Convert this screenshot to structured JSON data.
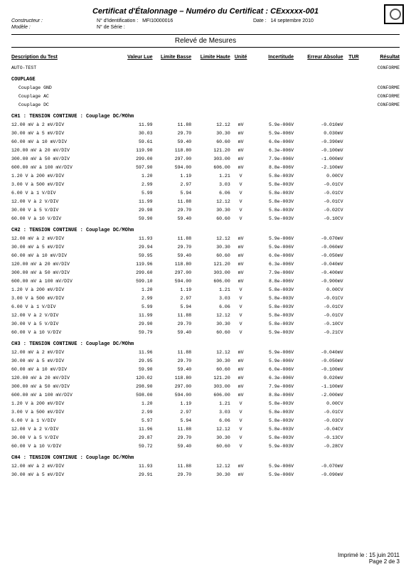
{
  "header": {
    "title": "Certificat d'Étalonnage",
    "cert_label": " – Numéro du Certificat : ",
    "cert_no": "CExxxxx-001",
    "constructeur_label": "Constructeur :",
    "modele_label": "Modèle :",
    "ident_label": "N° d'Identification :",
    "ident_value": "MFI10000016",
    "serie_label": "N° de Série :",
    "date_label": "Date :",
    "date_value": "14 septembre 2010",
    "releve": "Relevé de Mesures"
  },
  "columns": {
    "desc": "Description du Test",
    "vl": "Valeur Lue",
    "lb": "Limite Basse",
    "lh": "Limite Haute",
    "un": "Unité",
    "inc": "Incertitude",
    "err": "Erreur Absolue",
    "tur": "TUR",
    "res": "Résultat"
  },
  "autotest": {
    "label": "AUTO-TEST",
    "result": "CONFORME"
  },
  "couplage": {
    "title": "COUPLAGE",
    "lines": [
      {
        "label": "Couplage GND",
        "result": "CONFORME"
      },
      {
        "label": "Couplage AC",
        "result": "CONFORME"
      },
      {
        "label": "Couplage DC",
        "result": "CONFORME"
      }
    ]
  },
  "channels": [
    {
      "title": "CH1 : TENSION CONTINUE : Couplage DC/MOhm",
      "rows": [
        {
          "d": "12.00 mV à 2 mV/DIV",
          "vl": "11.99",
          "lb": "11.88",
          "lh": "12.12",
          "u": "mV",
          "inc": "5.9e-006V",
          "err": "-0.010mV"
        },
        {
          "d": "30.00 mV à 5 mV/DIV",
          "vl": "30.03",
          "lb": "29.70",
          "lh": "30.30",
          "u": "mV",
          "inc": "5.9e-006V",
          "err": "0.030mV"
        },
        {
          "d": "60.00 mV à 10 mV/DIV",
          "vl": "59.61",
          "lb": "59.40",
          "lh": "60.60",
          "u": "mV",
          "inc": "6.0e-006V",
          "err": "-0.390mV"
        },
        {
          "d": "120.00 mV à 20 mV/DIV",
          "vl": "119.90",
          "lb": "118.80",
          "lh": "121.20",
          "u": "mV",
          "inc": "6.3e-006V",
          "err": "-0.100mV"
        },
        {
          "d": "300.00 mV à 50 mV/DIV",
          "vl": "299.00",
          "lb": "297.00",
          "lh": "303.00",
          "u": "mV",
          "inc": "7.9e-006V",
          "err": "-1.000mV"
        },
        {
          "d": "600.00 mV à 100 mV/DIV",
          "vl": "597.90",
          "lb": "594.00",
          "lh": "606.00",
          "u": "mV",
          "inc": "8.8e-006V",
          "err": "-2.100mV"
        },
        {
          "d": "1.20 V à 200 mV/DIV",
          "vl": "1.20",
          "lb": "1.19",
          "lh": "1.21",
          "u": "V",
          "inc": "5.8e-003V",
          "err": "0.00CV"
        },
        {
          "d": "3.00 V à 500 mV/DIV",
          "vl": "2.99",
          "lb": "2.97",
          "lh": "3.03",
          "u": "V",
          "inc": "5.8e-003V",
          "err": "-0.01CV"
        },
        {
          "d": "6.00 V à 1 V/DIV",
          "vl": "5.99",
          "lb": "5.94",
          "lh": "6.06",
          "u": "V",
          "inc": "5.8e-003V",
          "err": "-0.01CV"
        },
        {
          "d": "12.00 V à 2 V/DIV",
          "vl": "11.99",
          "lb": "11.88",
          "lh": "12.12",
          "u": "V",
          "inc": "5.8e-003V",
          "err": "-0.01CV"
        },
        {
          "d": "30.00 V à 5 V/DIV",
          "vl": "29.98",
          "lb": "29.70",
          "lh": "30.30",
          "u": "V",
          "inc": "5.8e-003V",
          "err": "-0.02CV"
        },
        {
          "d": "60.00 V à 10 V/DIV",
          "vl": "59.90",
          "lb": "59.40",
          "lh": "60.60",
          "u": "V",
          "inc": "5.9e-003V",
          "err": "-0.10CV"
        }
      ]
    },
    {
      "title": "CH2 : TENSION CONTINUE : Couplage DC/MOhm",
      "rows": [
        {
          "d": "12.00 mV à 2 mV/DIV",
          "vl": "11.93",
          "lb": "11.88",
          "lh": "12.12",
          "u": "mV",
          "inc": "5.9e-006V",
          "err": "-0.070mV"
        },
        {
          "d": "30.00 mV à 5 mV/DIV",
          "vl": "29.94",
          "lb": "29.70",
          "lh": "30.30",
          "u": "mV",
          "inc": "5.9e-006V",
          "err": "-0.060mV"
        },
        {
          "d": "60.00 mV à 10 mV/DIV",
          "vl": "59.95",
          "lb": "59.40",
          "lh": "60.60",
          "u": "mV",
          "inc": "6.0e-006V",
          "err": "-0.050mV"
        },
        {
          "d": "120.00 mV à 20 mV/DIV",
          "vl": "119.96",
          "lb": "118.80",
          "lh": "121.20",
          "u": "mV",
          "inc": "6.3e-006V",
          "err": "-0.040mV"
        },
        {
          "d": "300.00 mV à 50 mV/DIV",
          "vl": "299.60",
          "lb": "297.00",
          "lh": "303.00",
          "u": "mV",
          "inc": "7.9e-006V",
          "err": "-0.400mV"
        },
        {
          "d": "600.00 mV à 100 mV/DIV",
          "vl": "599.10",
          "lb": "594.00",
          "lh": "606.00",
          "u": "mV",
          "inc": "8.8e-006V",
          "err": "-0.900mV"
        },
        {
          "d": "1.20 V à 200 mV/DIV",
          "vl": "1.20",
          "lb": "1.19",
          "lh": "1.21",
          "u": "V",
          "inc": "5.8e-003V",
          "err": "0.00CV"
        },
        {
          "d": "3.00 V à 500 mV/DIV",
          "vl": "2.99",
          "lb": "2.97",
          "lh": "3.03",
          "u": "V",
          "inc": "5.8e-003V",
          "err": "-0.01CV"
        },
        {
          "d": "6.00 V à 1 V/DIV",
          "vl": "5.99",
          "lb": "5.94",
          "lh": "6.06",
          "u": "V",
          "inc": "5.8e-003V",
          "err": "-0.01CV"
        },
        {
          "d": "12.00 V à 2 V/DIV",
          "vl": "11.99",
          "lb": "11.88",
          "lh": "12.12",
          "u": "V",
          "inc": "5.8e-003V",
          "err": "-0.01CV"
        },
        {
          "d": "30.00 V à 5 V/DIV",
          "vl": "29.90",
          "lb": "29.70",
          "lh": "30.30",
          "u": "V",
          "inc": "5.8e-003V",
          "err": "-0.10CV"
        },
        {
          "d": "60.00 V à 10 V/DIV",
          "vl": "59.79",
          "lb": "59.40",
          "lh": "60.60",
          "u": "V",
          "inc": "5.9e-003V",
          "err": "-0.21CV"
        }
      ]
    },
    {
      "title": "CH3 : TENSION CONTINUE : Couplage DC/MOhm",
      "rows": [
        {
          "d": "12.00 mV à 2 mV/DIV",
          "vl": "11.96",
          "lb": "11.88",
          "lh": "12.12",
          "u": "mV",
          "inc": "5.9e-006V",
          "err": "-0.040mV"
        },
        {
          "d": "30.00 mV à 5 mV/DIV",
          "vl": "29.95",
          "lb": "29.70",
          "lh": "30.30",
          "u": "mV",
          "inc": "5.9e-006V",
          "err": "-0.050mV"
        },
        {
          "d": "60.00 mV à 10 mV/DIV",
          "vl": "59.90",
          "lb": "59.40",
          "lh": "60.60",
          "u": "mV",
          "inc": "6.0e-006V",
          "err": "-0.100mV"
        },
        {
          "d": "120.00 mV à 20 mV/DIV",
          "vl": "120.02",
          "lb": "118.80",
          "lh": "121.20",
          "u": "mV",
          "inc": "6.3e-006V",
          "err": "0.020mV"
        },
        {
          "d": "300.00 mV à 50 mV/DIV",
          "vl": "298.90",
          "lb": "297.00",
          "lh": "303.00",
          "u": "mV",
          "inc": "7.9e-006V",
          "err": "-1.100mV"
        },
        {
          "d": "600.00 mV à 100 mV/DIV",
          "vl": "598.00",
          "lb": "594.00",
          "lh": "606.00",
          "u": "mV",
          "inc": "8.8e-006V",
          "err": "-2.000mV"
        },
        {
          "d": "1.20 V à 200 mV/DIV",
          "vl": "1.20",
          "lb": "1.19",
          "lh": "1.21",
          "u": "V",
          "inc": "5.8e-003V",
          "err": "0.00CV"
        },
        {
          "d": "3.00 V à 500 mV/DIV",
          "vl": "2.99",
          "lb": "2.97",
          "lh": "3.03",
          "u": "V",
          "inc": "5.8e-003V",
          "err": "-0.01CV"
        },
        {
          "d": "6.00 V à 1 V/DIV",
          "vl": "5.97",
          "lb": "5.94",
          "lh": "6.06",
          "u": "V",
          "inc": "5.8e-003V",
          "err": "-0.03CV"
        },
        {
          "d": "12.00 V à 2 V/DIV",
          "vl": "11.96",
          "lb": "11.88",
          "lh": "12.12",
          "u": "V",
          "inc": "5.8e-003V",
          "err": "-0.04CV"
        },
        {
          "d": "30.00 V à 5 V/DIV",
          "vl": "29.87",
          "lb": "29.70",
          "lh": "30.30",
          "u": "V",
          "inc": "5.8e-003V",
          "err": "-0.13CV"
        },
        {
          "d": "60.00 V à 10 V/DIV",
          "vl": "59.72",
          "lb": "59.40",
          "lh": "60.60",
          "u": "V",
          "inc": "5.9e-003V",
          "err": "-0.28CV"
        }
      ]
    },
    {
      "title": "CH4 : TENSION CONTINUE : Couplage DC/MOhm",
      "rows": [
        {
          "d": "12.00 mV à 2 mV/DIV",
          "vl": "11.93",
          "lb": "11.88",
          "lh": "12.12",
          "u": "mV",
          "inc": "5.9e-006V",
          "err": "-0.070mV"
        },
        {
          "d": "30.00 mV à 5 mV/DIV",
          "vl": "29.91",
          "lb": "29.70",
          "lh": "30.30",
          "u": "mV",
          "inc": "5.9e-006V",
          "err": "-0.090mV"
        }
      ]
    }
  ],
  "footer": {
    "printed": "Imprimé le : 15 juin 2011",
    "page": "Page 2 de 3"
  }
}
